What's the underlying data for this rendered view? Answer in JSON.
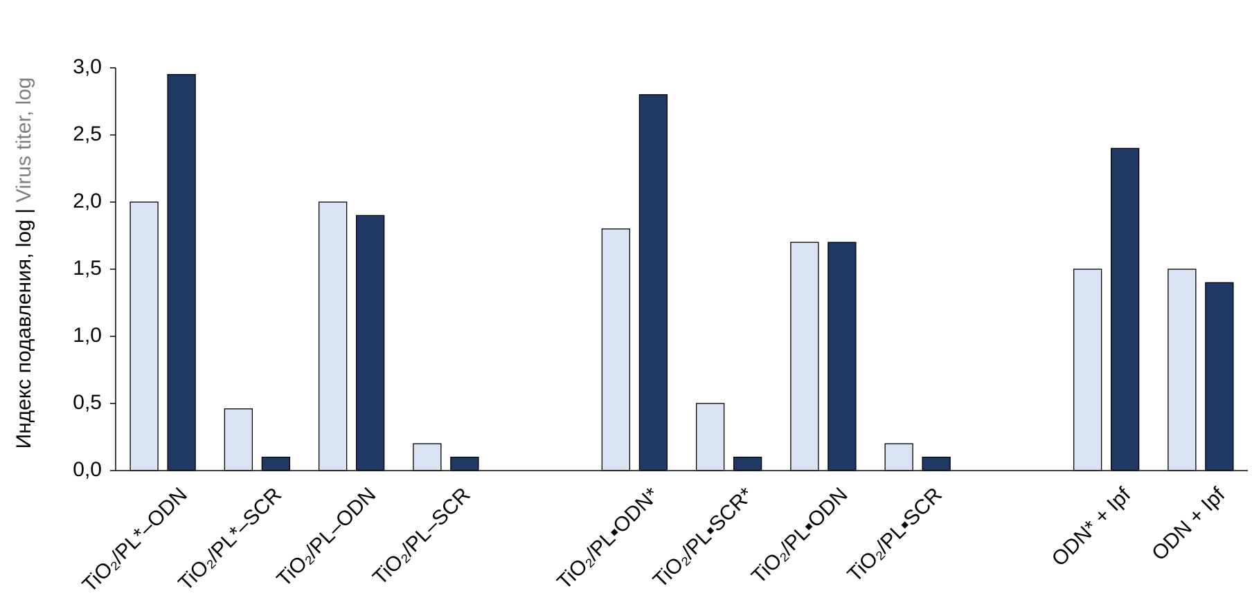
{
  "chart_data": {
    "type": "bar",
    "ylabel": [
      "Индекс подавления, log",
      "|",
      "Virus titer, log"
    ],
    "categories": [
      "TiO₂/PL*–ODN",
      "TiO₂/PL*–SCR",
      "TiO₂/PL–ODN",
      "TiO₂/PL–SCR",
      null,
      "TiO₂/PL▪ODN*",
      "TiO₂/PL▪SCR*",
      "TiO₂/PL▪ODN",
      "TiO₂/PL▪SCR",
      null,
      "ODN* + Ipf",
      "ODN + Ipf"
    ],
    "series": [
      {
        "color": "#dae3f3",
        "values": [
          2.0,
          0.46,
          2.0,
          0.2,
          null,
          1.8,
          0.5,
          1.7,
          0.2,
          null,
          1.5,
          1.5
        ]
      },
      {
        "color": "#203864",
        "values": [
          2.95,
          0.1,
          1.9,
          0.1,
          null,
          2.8,
          0.1,
          1.7,
          0.1,
          null,
          2.4,
          1.4
        ]
      }
    ],
    "ylim": [
      0,
      3
    ],
    "yticks": [
      {
        "value": 0,
        "label": "0,0"
      },
      {
        "value": 0.5,
        "label": "0,5"
      },
      {
        "value": 1,
        "label": "1,0"
      },
      {
        "value": 1.5,
        "label": "1,5"
      },
      {
        "value": 2,
        "label": "2,0"
      },
      {
        "value": 2.5,
        "label": "2,5"
      },
      {
        "value": 3,
        "label": "3,0"
      }
    ],
    "grid": false
  }
}
